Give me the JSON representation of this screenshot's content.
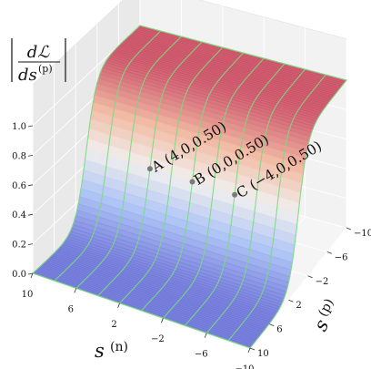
{
  "chart_data": {
    "type": "surface",
    "title": "",
    "zlabel_top": "dℒ",
    "zlabel_bottom": "ds",
    "zlabel_sup": "(p)",
    "xlabel": "s",
    "xlabel_sup": "(n)",
    "ylabel": "s",
    "ylabel_sup": "(p)",
    "xlim": [
      -10,
      10
    ],
    "ylim": [
      -10,
      10
    ],
    "zlim": [
      0,
      1
    ],
    "x_ticks": [
      "10",
      "6",
      "2",
      "−2",
      "−6",
      "−10"
    ],
    "y_ticks": [
      "−10",
      "−6",
      "−2",
      "2",
      "6",
      "10"
    ],
    "z_ticks": [
      "0.0",
      "0.2",
      "0.4",
      "0.6",
      "0.8",
      "1.0"
    ],
    "surface_function": "z = sigmoid(-s_p)",
    "colormap": [
      "#6f77d9",
      "#a8c1f5",
      "#f0efed",
      "#f2b79d",
      "#cc5166"
    ],
    "wire_color": "#79dc7f",
    "grid": true,
    "points": [
      {
        "label": "A (4,0,0.50)",
        "s_n": 4,
        "s_p": 0,
        "value": 0.5
      },
      {
        "label": "B (0,0,0.50)",
        "s_n": 0,
        "s_p": 0,
        "value": 0.5
      },
      {
        "label": "C (−4,0,0.50)",
        "s_n": -4,
        "s_p": 0,
        "value": 0.5
      }
    ]
  }
}
